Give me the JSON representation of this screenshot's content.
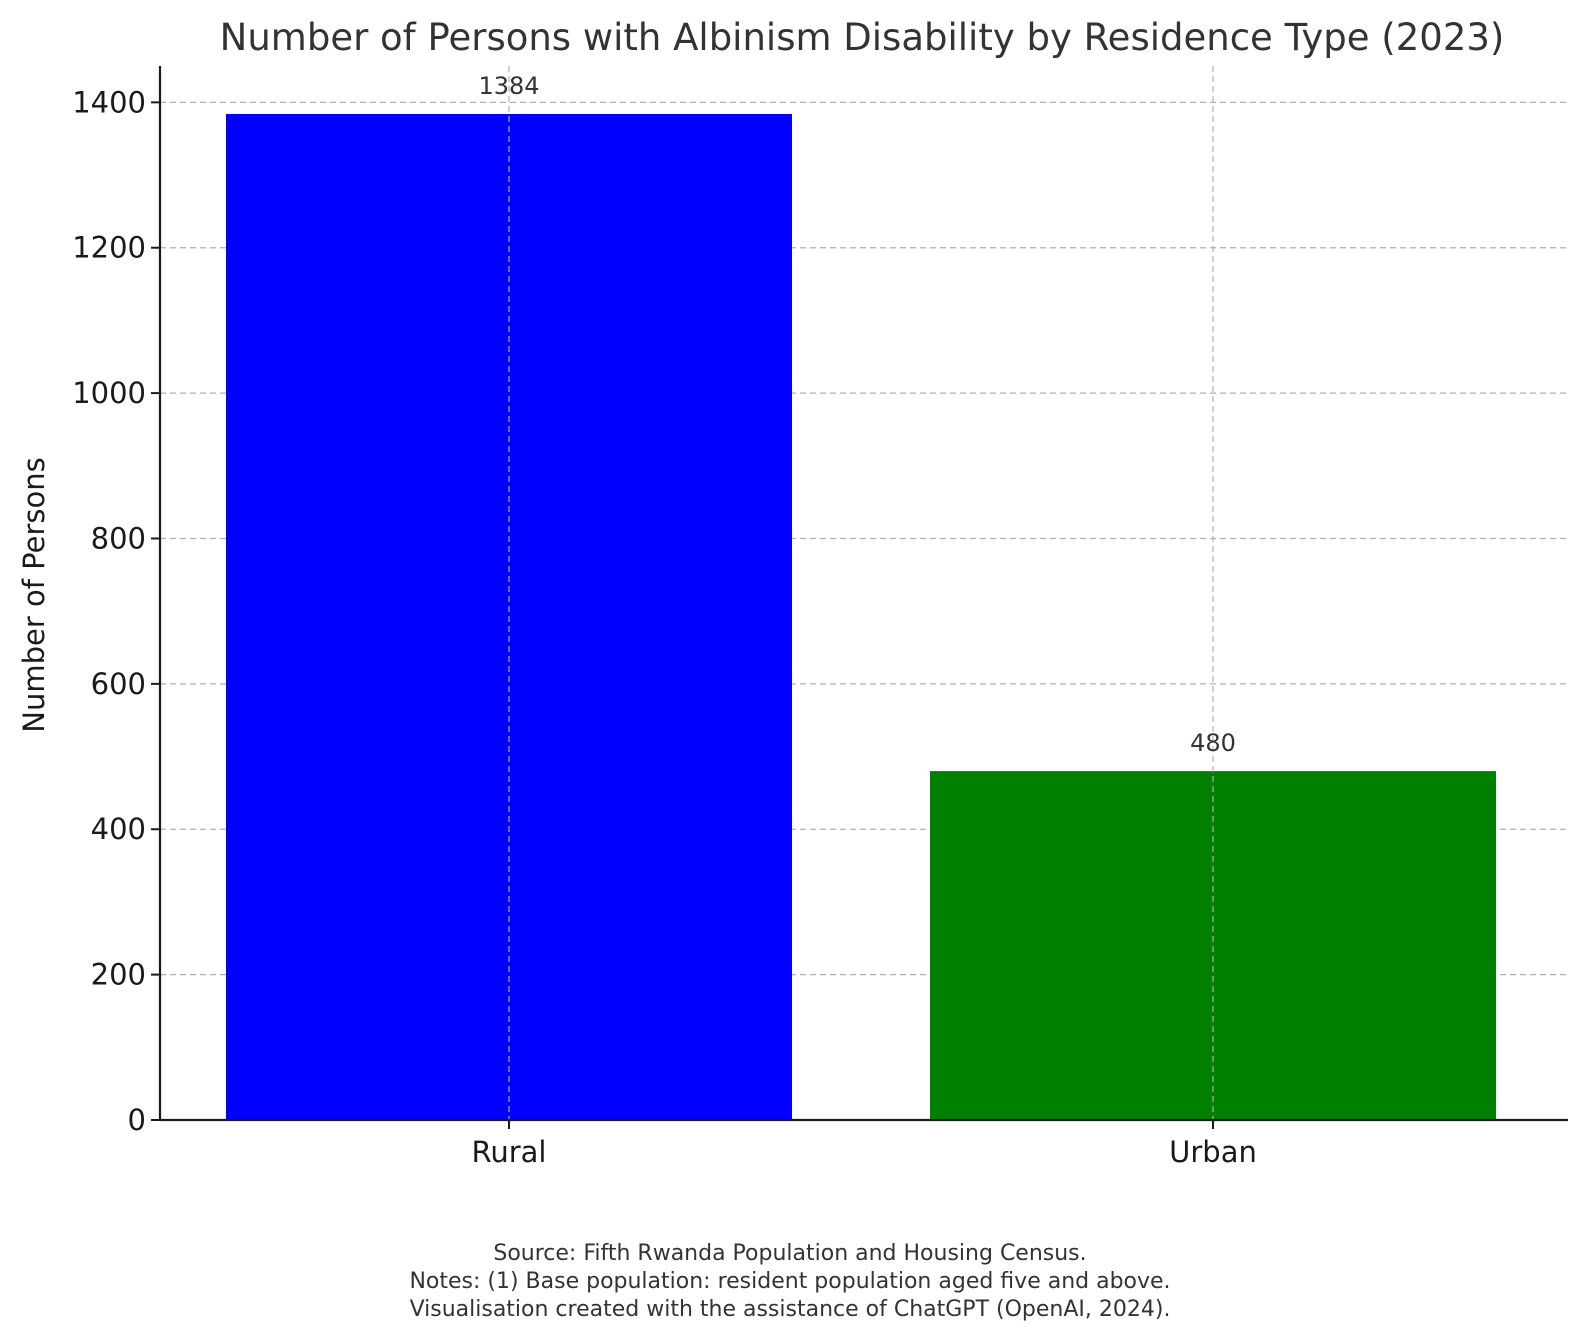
{
  "chart_data": {
    "type": "bar",
    "title": "Number of Persons with Albinism Disability by Residence Type (2023)",
    "xlabel": "",
    "ylabel": "Number of Persons",
    "categories": [
      "Rural",
      "Urban"
    ],
    "values": [
      1384,
      480
    ],
    "data_labels": [
      "1384",
      "480"
    ],
    "colors": [
      "#0000ff",
      "#008000"
    ],
    "ylim": [
      0,
      1450
    ],
    "yticks": [
      0,
      200,
      400,
      600,
      800,
      1000,
      1200,
      1400
    ],
    "grid": true,
    "legend": "none"
  },
  "footnotes": {
    "source": "Source: Fifth Rwanda Population and Housing Census.",
    "notes": "Notes: (1) Base population: resident population aged five and above.",
    "credit": "Visualisation created with the assistance of ChatGPT (OpenAI, 2024)."
  }
}
